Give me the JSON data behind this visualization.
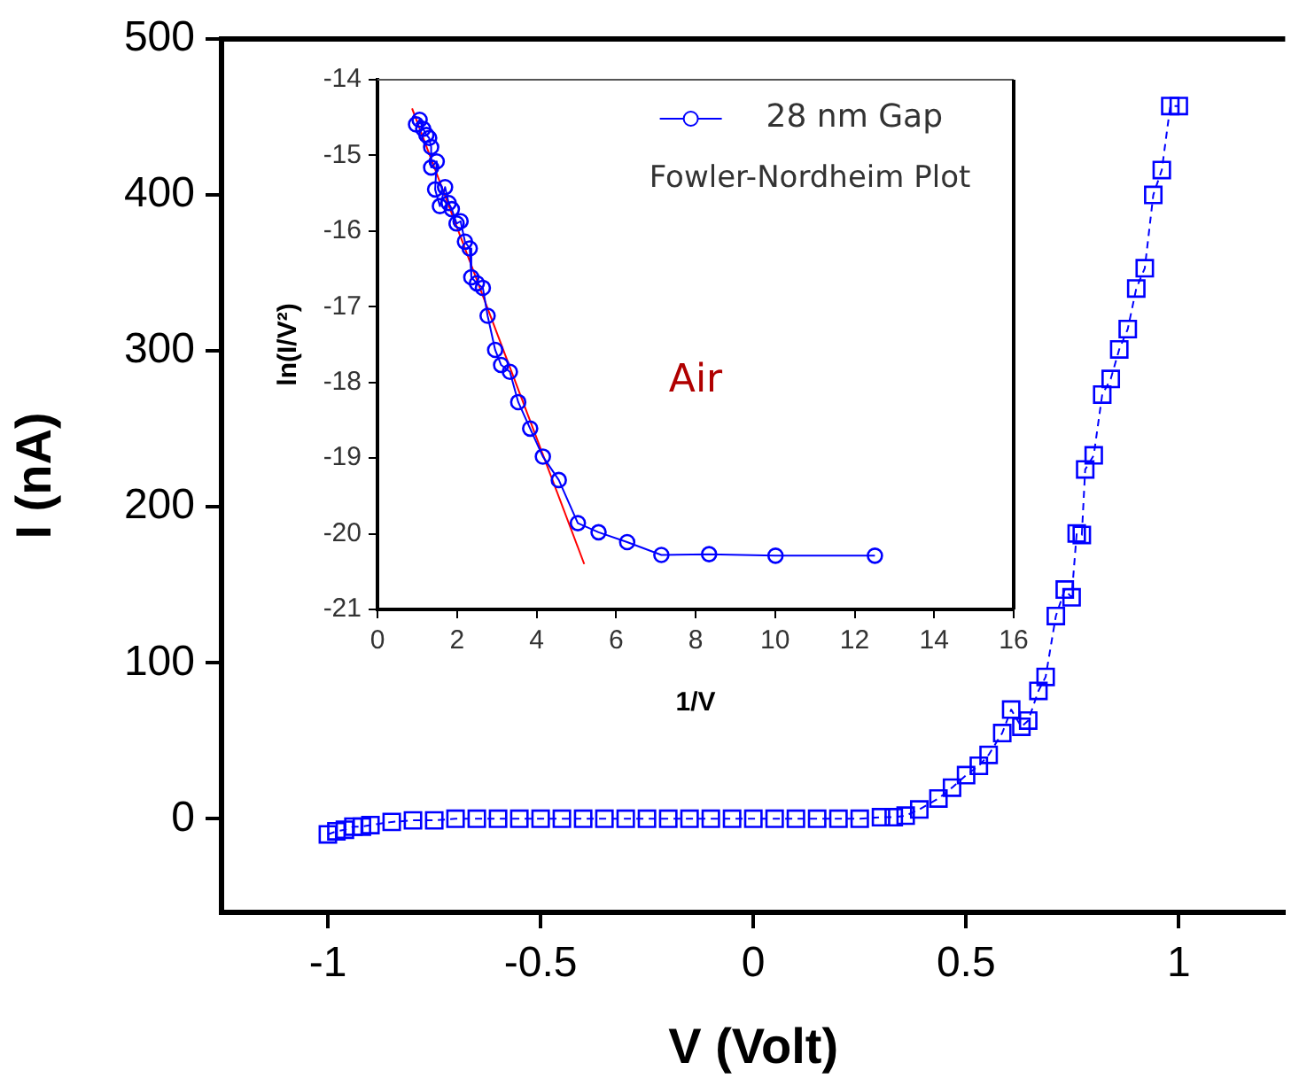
{
  "chart_data": [
    {
      "type": "line",
      "xlabel": "V (Volt)",
      "ylabel": "I (nA)",
      "xlim": [
        -1.25,
        1.25
      ],
      "ylim": [
        -60,
        500
      ],
      "xticks": [
        -1,
        -0.5,
        0,
        0.5,
        1
      ],
      "yticks": [
        0,
        100,
        200,
        300,
        400,
        500
      ],
      "grid": false,
      "legend": false,
      "marker": "square",
      "line_style": "dashed",
      "series": [
        {
          "color": "#0000ff",
          "x": [
            -1,
            -0.98,
            -0.96,
            -0.94,
            -0.92,
            -0.9,
            -0.85,
            -0.8,
            -0.75,
            -0.7,
            -0.65,
            -0.6,
            -0.55,
            -0.5,
            -0.45,
            -0.4,
            -0.35,
            -0.3,
            -0.25,
            -0.2,
            -0.15,
            -0.1,
            -0.05,
            0,
            0.05,
            0.1,
            0.15,
            0.2,
            0.25,
            0.3,
            0.33,
            0.358,
            0.39,
            0.435,
            0.467,
            0.5,
            0.53,
            0.553,
            0.585,
            0.606,
            0.63,
            0.646,
            0.67,
            0.687,
            0.711,
            0.732,
            0.748,
            0.76,
            0.772,
            0.78,
            0.8,
            0.82,
            0.84,
            0.86,
            0.88,
            0.9,
            0.92,
            0.94,
            0.96,
            0.98,
            1
          ],
          "values": [
            -10,
            -8,
            -7,
            -5,
            -5,
            -4,
            -2,
            -1,
            -1,
            0,
            0,
            0,
            0,
            0,
            0,
            0,
            0,
            0,
            0,
            0,
            0,
            0,
            0,
            0,
            0,
            0,
            0,
            0,
            0,
            1,
            1,
            2,
            6,
            13,
            20,
            28,
            34,
            41,
            55,
            70,
            59,
            63,
            82,
            91,
            130,
            147,
            142,
            183,
            182,
            224,
            233,
            272,
            282,
            301,
            314,
            340,
            353,
            400,
            416,
            457,
            457
          ]
        }
      ]
    },
    {
      "type": "line",
      "xlabel": "1/V",
      "ylabel": "ln(I/V²)",
      "xlim": [
        0,
        16
      ],
      "ylim": [
        -21,
        -14
      ],
      "xticks": [
        0,
        2,
        4,
        6,
        8,
        10,
        12,
        14,
        16
      ],
      "yticks": [
        -21,
        -20,
        -19,
        -18,
        -17,
        -16,
        -15,
        -14
      ],
      "grid": false,
      "legend": "top right",
      "marker": "circle",
      "line_style": "solid",
      "annotations": [
        "Fowler-Nordheim Plot",
        "Air"
      ],
      "series": [
        {
          "name": "28 nm Gap",
          "color": "#0000ff",
          "x": [
            0.97,
            1.06,
            1.15,
            1.23,
            1.3,
            1.35,
            1.35,
            1.49,
            1.45,
            1.57,
            1.7,
            1.79,
            1.87,
            1.99,
            2.09,
            2.2,
            2.32,
            2.36,
            2.5,
            2.65,
            2.77,
            2.96,
            3.11,
            3.33,
            3.54,
            3.84,
            4.16,
            4.56,
            5.04,
            5.56,
            6.28,
            7.14,
            8.34,
            10.01,
            12.51
          ],
          "values": [
            -14.59,
            -14.53,
            -14.65,
            -14.73,
            -14.77,
            -14.89,
            -15.16,
            -15.08,
            -15.45,
            -15.67,
            -15.42,
            -15.63,
            -15.71,
            -15.9,
            -15.87,
            -16.14,
            -16.23,
            -16.61,
            -16.69,
            -16.75,
            -17.12,
            -17.57,
            -17.77,
            -17.86,
            -18.26,
            -18.61,
            -18.98,
            -19.29,
            -19.86,
            -19.98,
            -20.11,
            -20.28,
            -20.27,
            -20.29,
            -20.29
          ]
        },
        {
          "type": "line",
          "color": "#ff0000",
          "marker": "none",
          "x": [
            0.87,
            5.2
          ],
          "values": [
            -14.38,
            -20.4
          ]
        }
      ]
    }
  ]
}
